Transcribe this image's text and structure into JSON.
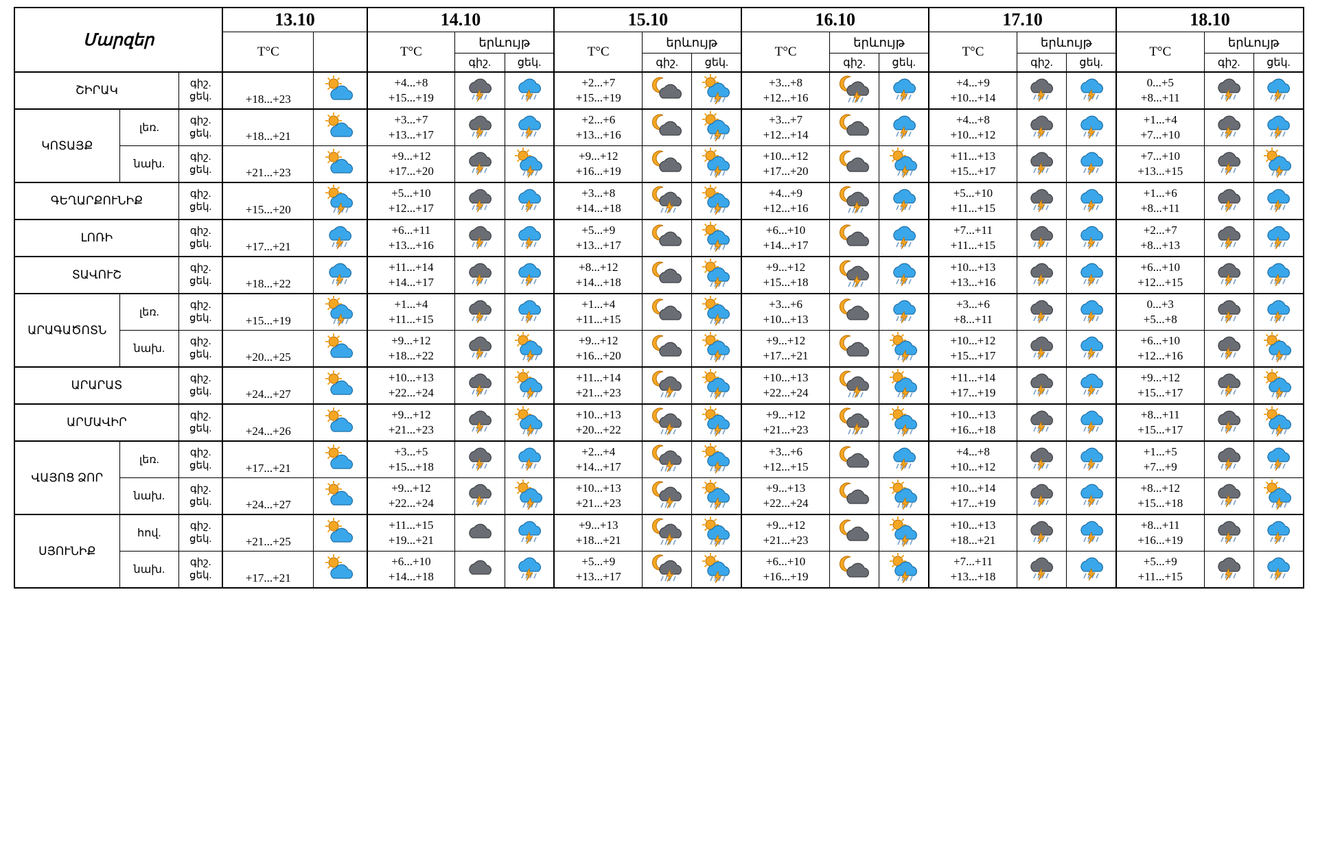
{
  "type": "table",
  "background_color": "#ffffff",
  "border_color": "#000000",
  "text_color": "#000000",
  "icon_colors": {
    "sun": "#f5a623",
    "cloud": "#2e9be6",
    "darkcloud": "#595d63",
    "rain": "#7aa0c4",
    "bolt": "#f5a623",
    "moon": "#f5a623"
  },
  "headers": {
    "regions": "Մարզեր",
    "tc": "T°C",
    "erkuyt": "երևույթ",
    "gish": "գիշ.",
    "ctsek": "ցեկ.",
    "gisher_lines": [
      "գիշ.",
      "ցեկ."
    ]
  },
  "dates": [
    "13.10",
    "14.10",
    "15.10",
    "16.10",
    "17.10",
    "18.10"
  ],
  "subregion_labels": {
    "ler": "լեռ.",
    "nakh": "նախ.",
    "hov": "հով."
  },
  "rows": [
    {
      "region": "ՇԻՐԱԿ",
      "sub": null,
      "d1": {
        "t": "+18...+23",
        "i1": "sunc"
      },
      "d": [
        {
          "t1": "+4...+8",
          "t2": "+15...+19",
          "i1": "storm",
          "i2": "cstorm"
        },
        {
          "t1": "+2...+7",
          "t2": "+15...+19",
          "i1": "moonc",
          "i2": "sunstorm"
        },
        {
          "t1": "+3...+8",
          "t2": "+12...+16",
          "i1": "mooncs",
          "i2": "cstorm"
        },
        {
          "t1": "+4...+9",
          "t2": "+10...+14",
          "i1": "storm",
          "i2": "cstorm"
        },
        {
          "t1": "0...+5",
          "t2": "+8...+11",
          "i1": "storm",
          "i2": "cstorm"
        }
      ]
    },
    {
      "region": "ԿՈՏԱՅՔ",
      "sub": "ler",
      "region_rows": 2,
      "d1": {
        "t": "+18...+21",
        "i1": "sunc"
      },
      "d": [
        {
          "t1": "+3...+7",
          "t2": "+13...+17",
          "i1": "storm",
          "i2": "cstorm"
        },
        {
          "t1": "+2...+6",
          "t2": "+13...+16",
          "i1": "moonc",
          "i2": "sunstorm"
        },
        {
          "t1": "+3...+7",
          "t2": "+12...+14",
          "i1": "moonc",
          "i2": "cstorm"
        },
        {
          "t1": "+4...+8",
          "t2": "+10...+12",
          "i1": "storm",
          "i2": "cstorm"
        },
        {
          "t1": "+1...+4",
          "t2": "+7...+10",
          "i1": "storm",
          "i2": "cstorm"
        }
      ]
    },
    {
      "region": null,
      "sub": "nakh",
      "d1": {
        "t": "+21...+23",
        "i1": "sunc"
      },
      "d": [
        {
          "t1": "+9...+12",
          "t2": "+17...+20",
          "i1": "storm",
          "i2": "sunstorm"
        },
        {
          "t1": "+9...+12",
          "t2": "+16...+19",
          "i1": "moonc",
          "i2": "sunstorm"
        },
        {
          "t1": "+10...+12",
          "t2": "+17...+20",
          "i1": "moonc",
          "i2": "sunstorm"
        },
        {
          "t1": "+11...+13",
          "t2": "+15...+17",
          "i1": "storm",
          "i2": "cstorm"
        },
        {
          "t1": "+7...+10",
          "t2": "+13...+15",
          "i1": "storm",
          "i2": "sunstorm"
        }
      ]
    },
    {
      "region": "ԳԵՂԱՐՔՈՒՆԻՔ",
      "sub": null,
      "d1": {
        "t": "+15...+20",
        "i1": "sunstorm"
      },
      "d": [
        {
          "t1": "+5...+10",
          "t2": "+12...+17",
          "i1": "storm",
          "i2": "cstorm"
        },
        {
          "t1": "+3...+8",
          "t2": "+14...+18",
          "i1": "mooncs",
          "i2": "sunstorm"
        },
        {
          "t1": "+4...+9",
          "t2": "+12...+16",
          "i1": "mooncs",
          "i2": "cstorm"
        },
        {
          "t1": "+5...+10",
          "t2": "+11...+15",
          "i1": "storm",
          "i2": "cstorm"
        },
        {
          "t1": "+1...+6",
          "t2": "+8...+11",
          "i1": "storm",
          "i2": "cstorm"
        }
      ]
    },
    {
      "region": "ԼՈՌԻ",
      "sub": null,
      "d1": {
        "t": "+17...+21",
        "i1": "cstorm"
      },
      "d": [
        {
          "t1": "+6...+11",
          "t2": "+13...+16",
          "i1": "storm",
          "i2": "cstorm"
        },
        {
          "t1": "+5...+9",
          "t2": "+13...+17",
          "i1": "moonc",
          "i2": "sunstorm"
        },
        {
          "t1": "+6...+10",
          "t2": "+14...+17",
          "i1": "moonc",
          "i2": "cstorm"
        },
        {
          "t1": "+7...+11",
          "t2": "+11...+15",
          "i1": "storm",
          "i2": "cstorm"
        },
        {
          "t1": "+2...+7",
          "t2": "+8...+13",
          "i1": "storm",
          "i2": "cstorm"
        }
      ]
    },
    {
      "region": "ՏԱՎՈՒՇ",
      "sub": null,
      "d1": {
        "t": "+18...+22",
        "i1": "cstorm"
      },
      "d": [
        {
          "t1": "+11...+14",
          "t2": "+14...+17",
          "i1": "storm",
          "i2": "cstorm"
        },
        {
          "t1": "+8...+12",
          "t2": "+14...+18",
          "i1": "moonc",
          "i2": "sunstorm"
        },
        {
          "t1": "+9...+12",
          "t2": "+15...+18",
          "i1": "mooncs",
          "i2": "cstorm"
        },
        {
          "t1": "+10...+13",
          "t2": "+13...+16",
          "i1": "storm",
          "i2": "cstorm"
        },
        {
          "t1": "+6...+10",
          "t2": "+12...+15",
          "i1": "storm",
          "i2": "cstorm"
        }
      ]
    },
    {
      "region": "ԱՐԱԳԱԾՈՏՆ",
      "sub": "ler",
      "region_rows": 2,
      "d1": {
        "t": "+15...+19",
        "i1": "sunstorm"
      },
      "d": [
        {
          "t1": "+1...+4",
          "t2": "+11...+15",
          "i1": "storm",
          "i2": "cstorm"
        },
        {
          "t1": "+1...+4",
          "t2": "+11...+15",
          "i1": "moonc",
          "i2": "sunstorm"
        },
        {
          "t1": "+3...+6",
          "t2": "+10...+13",
          "i1": "moonc",
          "i2": "cstorm"
        },
        {
          "t1": "+3...+6",
          "t2": "+8...+11",
          "i1": "storm",
          "i2": "cstorm"
        },
        {
          "t1": "0...+3",
          "t2": "+5...+8",
          "i1": "storm",
          "i2": "cstorm"
        }
      ]
    },
    {
      "region": null,
      "sub": "nakh",
      "d1": {
        "t": "+20...+25",
        "i1": "sunc"
      },
      "d": [
        {
          "t1": "+9...+12",
          "t2": "+18...+22",
          "i1": "storm",
          "i2": "sunstorm"
        },
        {
          "t1": "+9...+12",
          "t2": "+16...+20",
          "i1": "moonc",
          "i2": "sunstorm"
        },
        {
          "t1": "+9...+12",
          "t2": "+17...+21",
          "i1": "moonc",
          "i2": "sunstorm"
        },
        {
          "t1": "+10...+12",
          "t2": "+15...+17",
          "i1": "storm",
          "i2": "cstorm"
        },
        {
          "t1": "+6...+10",
          "t2": "+12...+16",
          "i1": "storm",
          "i2": "sunstorm"
        }
      ]
    },
    {
      "region": "ԱՐԱՐԱՏ",
      "sub": null,
      "d1": {
        "t": "+24...+27",
        "i1": "sunc"
      },
      "d": [
        {
          "t1": "+10...+13",
          "t2": "+22...+24",
          "i1": "storm",
          "i2": "sunstorm"
        },
        {
          "t1": "+11...+14",
          "t2": "+21...+23",
          "i1": "mooncs",
          "i2": "sunstorm"
        },
        {
          "t1": "+10...+13",
          "t2": "+22...+24",
          "i1": "mooncs",
          "i2": "sunstorm"
        },
        {
          "t1": "+11...+14",
          "t2": "+17...+19",
          "i1": "storm",
          "i2": "cstorm"
        },
        {
          "t1": "+9...+12",
          "t2": "+15...+17",
          "i1": "storm",
          "i2": "sunstorm"
        }
      ]
    },
    {
      "region": "ԱՐՄԱՎԻՐ",
      "sub": null,
      "d1": {
        "t": "+24...+26",
        "i1": "sunc"
      },
      "d": [
        {
          "t1": "+9...+12",
          "t2": "+21...+23",
          "i1": "storm",
          "i2": "sunstorm"
        },
        {
          "t1": "+10...+13",
          "t2": "+20...+22",
          "i1": "mooncs",
          "i2": "sunstorm"
        },
        {
          "t1": "+9...+12",
          "t2": "+21...+23",
          "i1": "mooncs",
          "i2": "sunstorm"
        },
        {
          "t1": "+10...+13",
          "t2": "+16...+18",
          "i1": "storm",
          "i2": "cstorm"
        },
        {
          "t1": "+8...+11",
          "t2": "+15...+17",
          "i1": "storm",
          "i2": "sunstorm"
        }
      ]
    },
    {
      "region": "ՎԱՅՈՑ ՁՈՐ",
      "sub": "ler",
      "region_rows": 2,
      "d1": {
        "t": "+17...+21",
        "i1": "sunc"
      },
      "d": [
        {
          "t1": "+3...+5",
          "t2": "+15...+18",
          "i1": "storm",
          "i2": "cstorm"
        },
        {
          "t1": "+2...+4",
          "t2": "+14...+17",
          "i1": "mooncs",
          "i2": "sunstorm"
        },
        {
          "t1": "+3...+6",
          "t2": "+12...+15",
          "i1": "moonc",
          "i2": "cstorm"
        },
        {
          "t1": "+4...+8",
          "t2": "+10...+12",
          "i1": "storm",
          "i2": "cstorm"
        },
        {
          "t1": "+1...+5",
          "t2": "+7...+9",
          "i1": "storm",
          "i2": "cstorm"
        }
      ]
    },
    {
      "region": null,
      "sub": "nakh",
      "d1": {
        "t": "+24...+27",
        "i1": "sunc"
      },
      "d": [
        {
          "t1": "+9...+12",
          "t2": "+22...+24",
          "i1": "storm",
          "i2": "sunstorm"
        },
        {
          "t1": "+10...+13",
          "t2": "+21...+23",
          "i1": "mooncs",
          "i2": "sunstorm"
        },
        {
          "t1": "+9...+13",
          "t2": "+22...+24",
          "i1": "moonc",
          "i2": "sunstorm"
        },
        {
          "t1": "+10...+14",
          "t2": "+17...+19",
          "i1": "storm",
          "i2": "cstorm"
        },
        {
          "t1": "+8...+12",
          "t2": "+15...+18",
          "i1": "storm",
          "i2": "sunstorm"
        }
      ]
    },
    {
      "region": "ՍՅՈՒՆԻՔ",
      "sub": "hov",
      "region_rows": 2,
      "d1": {
        "t": "+21...+25",
        "i1": "sunc"
      },
      "d": [
        {
          "t1": "+11...+15",
          "t2": "+19...+21",
          "i1": "dcloud",
          "i2": "cstorm"
        },
        {
          "t1": "+9...+13",
          "t2": "+18...+21",
          "i1": "mooncs",
          "i2": "sunstorm"
        },
        {
          "t1": "+9...+12",
          "t2": "+21...+23",
          "i1": "moonc",
          "i2": "sunstorm"
        },
        {
          "t1": "+10...+13",
          "t2": "+18...+21",
          "i1": "storm",
          "i2": "cstorm"
        },
        {
          "t1": "+8...+11",
          "t2": "+16...+19",
          "i1": "storm",
          "i2": "cstorm"
        }
      ]
    },
    {
      "region": null,
      "sub": "nakh",
      "d1": {
        "t": "+17...+21",
        "i1": "sunc"
      },
      "d": [
        {
          "t1": "+6...+10",
          "t2": "+14...+18",
          "i1": "dcloud",
          "i2": "cstorm"
        },
        {
          "t1": "+5...+9",
          "t2": "+13...+17",
          "i1": "mooncs",
          "i2": "sunstorm"
        },
        {
          "t1": "+6...+10",
          "t2": "+16...+19",
          "i1": "moonc",
          "i2": "sunstorm"
        },
        {
          "t1": "+7...+11",
          "t2": "+13...+18",
          "i1": "storm",
          "i2": "cstorm"
        },
        {
          "t1": "+5...+9",
          "t2": "+11...+15",
          "i1": "storm",
          "i2": "cstorm"
        }
      ]
    }
  ]
}
